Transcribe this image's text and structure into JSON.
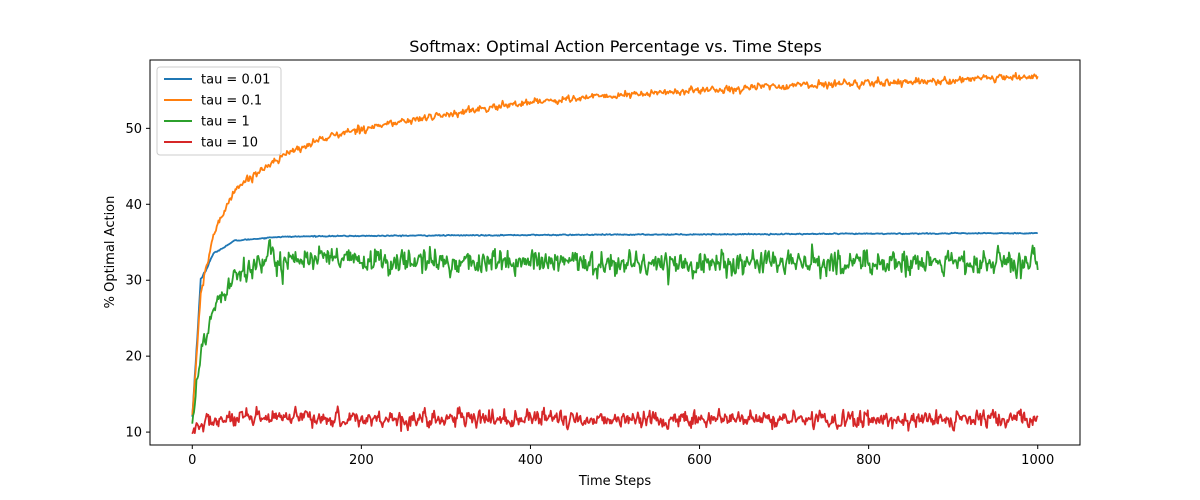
{
  "chart_data": {
    "type": "line",
    "title": "Softmax: Optimal Action Percentage vs. Time Steps",
    "xlabel": "Time Steps",
    "ylabel": "% Optimal Action",
    "xlim": [
      -50,
      1050
    ],
    "ylim": [
      8.3,
      59.0
    ],
    "xticks": [
      0,
      200,
      400,
      600,
      800,
      1000
    ],
    "yticks": [
      10,
      20,
      30,
      40,
      50
    ],
    "grid": false,
    "legend_position": "top-left",
    "series": [
      {
        "name": "tau = 0.01",
        "color": "#1f77b4",
        "model": "saturating",
        "start": 12.0,
        "end": 36.2,
        "tau": 12,
        "noise": 0.05,
        "keypoints": [
          [
            0,
            12.0
          ],
          [
            10,
            30.0
          ],
          [
            25,
            33.5
          ],
          [
            50,
            35.2
          ],
          [
            100,
            35.7
          ],
          [
            150,
            35.8
          ],
          [
            300,
            35.9
          ],
          [
            500,
            36.0
          ],
          [
            1000,
            36.2
          ]
        ]
      },
      {
        "name": "tau = 0.1",
        "color": "#ff7f0e",
        "model": "rising",
        "start": 12.0,
        "end": 56.8,
        "noise": 0.35,
        "keypoints": [
          [
            0,
            12.0
          ],
          [
            10,
            28.0
          ],
          [
            25,
            36.0
          ],
          [
            50,
            42.0
          ],
          [
            100,
            46.0
          ],
          [
            150,
            48.5
          ],
          [
            200,
            50.0
          ],
          [
            300,
            51.8
          ],
          [
            400,
            53.5
          ],
          [
            500,
            54.3
          ],
          [
            600,
            55.0
          ],
          [
            700,
            55.6
          ],
          [
            800,
            56.0
          ],
          [
            900,
            56.3
          ],
          [
            1000,
            56.8
          ]
        ]
      },
      {
        "name": "tau = 1",
        "color": "#2ca02c",
        "model": "noisy-plateau",
        "start": 12.0,
        "plateau": 32.3,
        "noise": 1.2,
        "keypoints": [
          [
            0,
            12.0
          ],
          [
            10,
            20.0
          ],
          [
            25,
            26.5
          ],
          [
            50,
            31.0
          ],
          [
            100,
            33.0
          ],
          [
            200,
            32.5
          ],
          [
            400,
            32.3
          ],
          [
            600,
            32.2
          ],
          [
            800,
            32.3
          ],
          [
            1000,
            32.2
          ]
        ]
      },
      {
        "name": "tau = 10",
        "color": "#d62728",
        "model": "noisy-flat",
        "start": 9.5,
        "plateau": 11.7,
        "noise": 0.8,
        "keypoints": [
          [
            0,
            9.5
          ],
          [
            5,
            10.5
          ],
          [
            20,
            11.5
          ],
          [
            100,
            11.8
          ],
          [
            500,
            11.7
          ],
          [
            1000,
            11.6
          ]
        ]
      }
    ]
  }
}
